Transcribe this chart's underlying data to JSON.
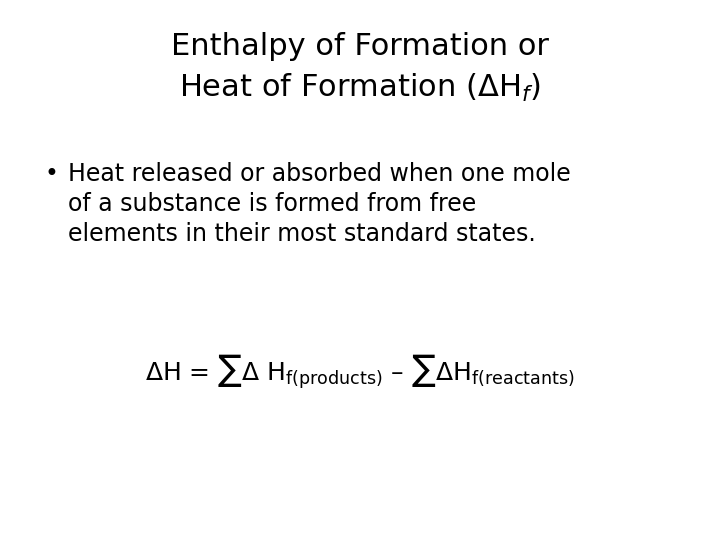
{
  "background_color": "#ffffff",
  "title_line1": "Enthalpy of Formation or",
  "title_line2": "Heat of Formation (ΔH₟)",
  "bullet_text_line1": "Heat released or absorbed when one mole",
  "bullet_text_line2": "of a substance is formed from free",
  "bullet_text_line3": "elements in their most standard states.",
  "formula_part1": "ΔH = ∑Δ H",
  "formula_sub1": "f(products)",
  "formula_part2": " – ∑ΔH",
  "formula_sub2": "f(reactants)",
  "title_fontsize": 22,
  "bullet_fontsize": 17,
  "formula_fontsize": 18,
  "formula_sub_fontsize": 11,
  "text_color": "#000000"
}
